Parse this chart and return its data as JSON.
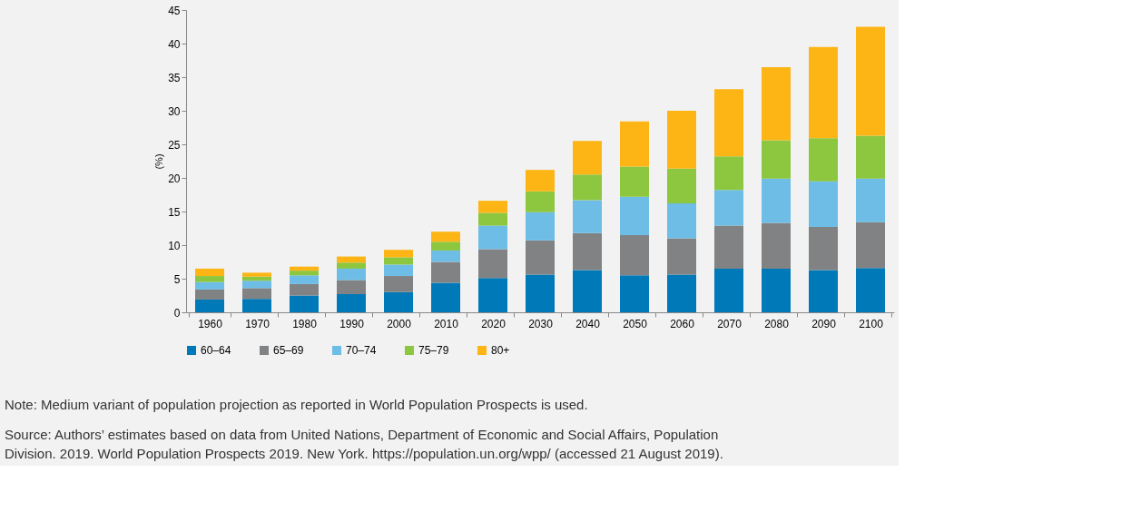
{
  "chart_data": {
    "type": "bar",
    "stacked": true,
    "ylabel": "(%)",
    "categories": [
      "1960",
      "1970",
      "1980",
      "1990",
      "2000",
      "2010",
      "2020",
      "2030",
      "2040",
      "2050",
      "2060",
      "2070",
      "2080",
      "2090",
      "2100"
    ],
    "series": [
      {
        "name": "60–64",
        "color": "#0079b8",
        "values": [
          1.9,
          2.0,
          2.5,
          2.7,
          3.0,
          4.4,
          5.1,
          5.6,
          6.3,
          5.5,
          5.6,
          6.5,
          6.5,
          6.3,
          6.6
        ]
      },
      {
        "name": "65–69",
        "color": "#808284",
        "values": [
          1.5,
          1.6,
          1.7,
          2.1,
          2.4,
          3.1,
          4.3,
          5.1,
          5.5,
          6.0,
          5.4,
          6.4,
          6.8,
          6.4,
          6.8
        ]
      },
      {
        "name": "70–74",
        "color": "#6dbde6",
        "values": [
          1.1,
          1.1,
          1.3,
          1.7,
          1.7,
          1.7,
          3.5,
          4.2,
          4.9,
          5.7,
          5.2,
          5.3,
          6.6,
          6.8,
          6.5
        ]
      },
      {
        "name": "75–79",
        "color": "#8dc63f",
        "values": [
          0.9,
          0.6,
          0.7,
          0.9,
          1.1,
          1.3,
          1.9,
          3.1,
          3.8,
          4.5,
          5.2,
          5.0,
          5.7,
          6.4,
          6.4
        ]
      },
      {
        "name": "80+",
        "color": "#fdb515",
        "values": [
          1.1,
          0.6,
          0.6,
          0.9,
          1.1,
          1.5,
          1.8,
          3.2,
          5.0,
          6.7,
          8.6,
          10.0,
          10.9,
          13.6,
          16.2
        ]
      }
    ],
    "ylim": [
      0,
      45
    ],
    "yticks": [
      0,
      5,
      10,
      15,
      20,
      25,
      30,
      35,
      40,
      45
    ],
    "grid": false,
    "legend": "bottom",
    "annotations": [
      "Note: Medium variant of population projection as reported in World Population Prospects is used.",
      "Source: Authors’ estimates based on data from United Nations, Department of Economic and Social Affairs, Population Division. 2019. World Population Prospects 2019. New York. https://population.un.org/wpp/ (accessed 21 August 2019)."
    ]
  }
}
